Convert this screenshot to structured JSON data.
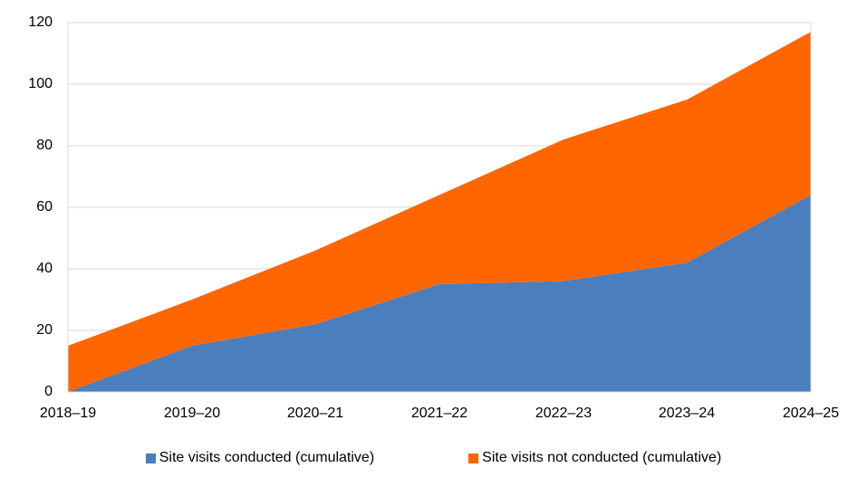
{
  "chart_data": {
    "type": "area",
    "stacked": true,
    "title": "",
    "xlabel": "",
    "ylabel": "",
    "categories": [
      "2018–19",
      "2019–20",
      "2020–21",
      "2021–22",
      "2022–23",
      "2023–24",
      "2024–25"
    ],
    "series": [
      {
        "name": "Site visits conducted (cumulative)",
        "color": "#4A7EBD",
        "values": [
          0,
          15,
          22,
          35,
          36,
          42,
          64
        ]
      },
      {
        "name": "Site visits not conducted (cumulative)",
        "color": "#FF6600",
        "values": [
          15,
          15,
          24,
          29,
          46,
          53,
          53
        ]
      }
    ],
    "totals_cumulative": [
      15,
      30,
      46,
      64,
      82,
      95,
      117
    ],
    "y_ticks": [
      0,
      20,
      40,
      60,
      80,
      100,
      120
    ],
    "ylim": [
      0,
      120
    ],
    "grid": "horizontal",
    "gridline_color": "#D9D9D9",
    "plot_border_color": "#D9D9D9",
    "background_color": "#FFFFFF",
    "legend_position": "bottom"
  }
}
